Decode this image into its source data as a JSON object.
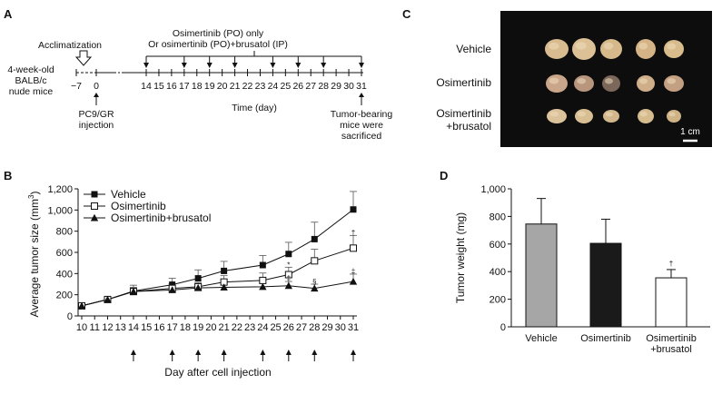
{
  "panel_a": {
    "letter": "A",
    "mice_label": [
      "4-week-old",
      "BALB/c",
      "nude mice"
    ],
    "acclimatization": "Acclimatization",
    "treatment_line1": "Osimertinib (PO) only",
    "treatment_line2": "Or osimertinib (PO)+brusatol (IP)",
    "day_minus7": "−7",
    "day_zero": "0",
    "day_ticks": [
      "14",
      "15",
      "16",
      "17",
      "18",
      "19",
      "20",
      "21",
      "22",
      "23",
      "24",
      "25",
      "26",
      "27",
      "28",
      "29",
      "30",
      "31"
    ],
    "treatment_arrow_days": [
      14,
      17,
      19,
      21,
      24,
      26,
      28,
      31
    ],
    "xlabel": "Time (day)",
    "injection_label": [
      "PC9/GR",
      "injection"
    ],
    "sacrifice_label": [
      "Tumor-bearing",
      "mice were",
      "sacrificed"
    ]
  },
  "panel_c": {
    "letter": "C",
    "rows": [
      "Vehicle",
      "Osimertinib",
      "Osimertinib\n+brusatol"
    ],
    "row_label_lines": [
      [
        "Vehicle"
      ],
      [
        "Osimertinib"
      ],
      [
        "Osimertinib",
        "+brusatol"
      ]
    ],
    "scale_bar": "1 cm",
    "colors": {
      "background": "#0d0d0d",
      "tumor": "#d8b88c",
      "tumor_dark": "#6e5a4a"
    }
  },
  "chart_data": [
    {
      "panel": "B",
      "type": "line",
      "title": "",
      "xlabel": "Day after cell injection",
      "ylabel": "Average tumor size (mm³)",
      "ylabel_base": "Average tumor size (mm",
      "ylabel_sup": "3",
      "ylabel_close": ")",
      "xlim": [
        10,
        31
      ],
      "ylim": [
        0,
        1200
      ],
      "x_ticks": [
        10,
        11,
        12,
        13,
        14,
        15,
        16,
        17,
        18,
        19,
        20,
        21,
        22,
        23,
        24,
        25,
        26,
        27,
        28,
        29,
        30,
        31
      ],
      "y_ticks": [
        0,
        200,
        400,
        600,
        800,
        1000,
        1200
      ],
      "y_tick_labels": [
        "0",
        "200",
        "400",
        "600",
        "800",
        "1,000",
        "1,200"
      ],
      "legend_position": "top-left",
      "dosing_arrow_days": [
        14,
        17,
        19,
        21,
        24,
        26,
        28,
        31
      ],
      "series": [
        {
          "name": "Vehicle",
          "marker": "filled-square",
          "x": [
            10,
            12,
            14,
            17,
            19,
            21,
            24,
            26,
            28,
            31
          ],
          "y": [
            95,
            155,
            235,
            295,
            355,
            425,
            480,
            585,
            725,
            1005
          ],
          "err": [
            10,
            12,
            55,
            60,
            80,
            90,
            90,
            110,
            160,
            170
          ]
        },
        {
          "name": "Osimertinib",
          "marker": "open-square",
          "x": [
            10,
            12,
            14,
            17,
            19,
            21,
            24,
            26,
            28,
            31
          ],
          "y": [
            95,
            155,
            230,
            260,
            275,
            320,
            335,
            390,
            520,
            640
          ],
          "err": [
            10,
            12,
            40,
            45,
            40,
            60,
            70,
            70,
            110,
            120
          ]
        },
        {
          "name": "Osimertinib+brusatol",
          "marker": "filled-triangle",
          "x": [
            10,
            12,
            14,
            17,
            19,
            21,
            24,
            26,
            28,
            31
          ],
          "y": [
            95,
            155,
            230,
            245,
            265,
            270,
            275,
            285,
            260,
            325
          ],
          "err": [
            10,
            12,
            30,
            30,
            30,
            40,
            40,
            40,
            40,
            70
          ]
        }
      ],
      "annotations": [
        {
          "series": "Osimertinib",
          "x": 26,
          "y": 460,
          "text": "*"
        },
        {
          "series": "Osimertinib+brusatol",
          "x": 26,
          "y": 335,
          "text": "‡"
        },
        {
          "series": "Osimertinib+brusatol",
          "x": 28,
          "y": 300,
          "text": "§"
        },
        {
          "series": "Osimertinib",
          "x": 31,
          "y": 762,
          "text": "†"
        },
        {
          "series": "Osimertinib+brusatol",
          "x": 31,
          "y": 398,
          "text": "‡"
        }
      ]
    },
    {
      "panel": "D",
      "type": "bar",
      "title": "",
      "xlabel": "",
      "ylabel": "Tumor weight (mg)",
      "ylim": [
        0,
        1000
      ],
      "y_ticks": [
        0,
        200,
        400,
        600,
        800,
        1000
      ],
      "y_tick_labels": [
        "0",
        "200",
        "400",
        "600",
        "800",
        "1,000"
      ],
      "categories": [
        "Vehicle",
        "Osimertinib",
        "Osimertinib\n+brusatol"
      ],
      "category_label_lines": [
        [
          "Vehicle"
        ],
        [
          "Osimertinib"
        ],
        [
          "Osimertinib",
          "+brusatol"
        ]
      ],
      "values": [
        745,
        605,
        355
      ],
      "err": [
        185,
        175,
        60
      ],
      "bar_colors": [
        "#a6a6a6",
        "#1a1a1a",
        "#ffffff"
      ],
      "annotations": [
        {
          "category": "Osimertinib\n+brusatol",
          "y": 440,
          "text": "†"
        }
      ]
    }
  ]
}
